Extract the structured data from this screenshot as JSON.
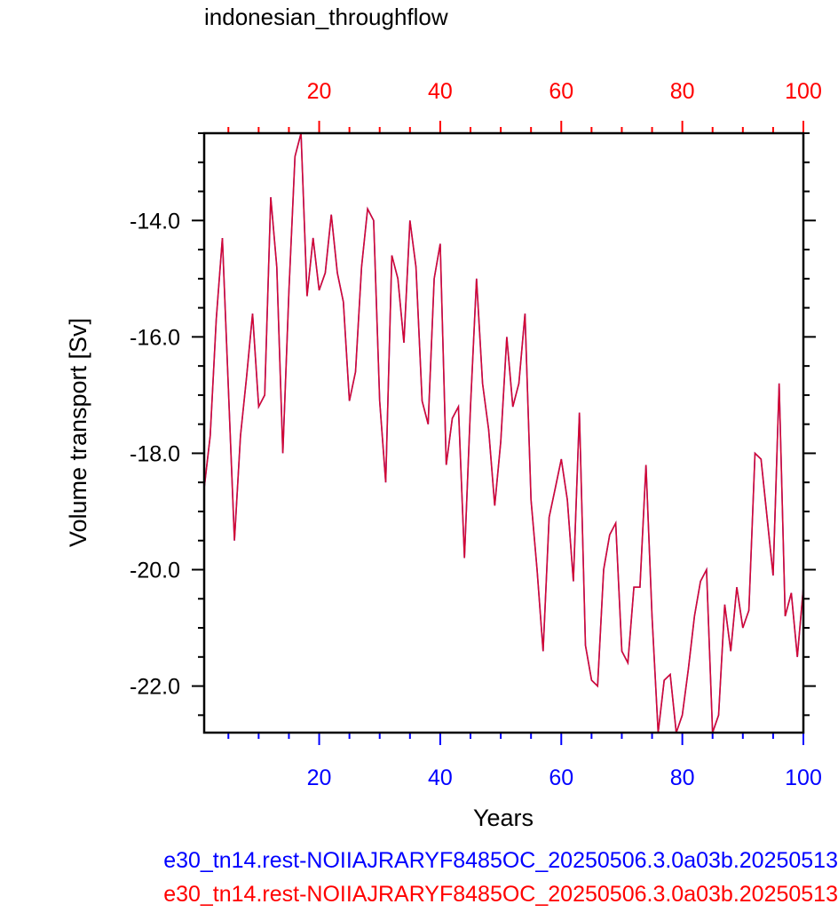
{
  "chart_data": {
    "type": "line",
    "title": "indonesian_throughflow",
    "xlabel": "Years",
    "ylabel": "Volume transport [Sv]",
    "xlim": [
      1,
      100
    ],
    "ylim": [
      -22.8,
      -12.5
    ],
    "x_ticks": [
      20,
      40,
      60,
      80,
      100
    ],
    "y_ticks": [
      -14.0,
      -16.0,
      -18.0,
      -20.0,
      -22.0
    ],
    "y_tick_labels": [
      "-14.0",
      "-16.0",
      "-18.0",
      "-20.0",
      "-22.0"
    ],
    "bottom_axis_color": "#0000ff",
    "top_axis_color": "#ff0000",
    "series": [
      {
        "name": "e30_tn14.rest-NOIIAJRARYF8485OC_20250506.3.0a03b.20250513",
        "color": "#0000ff",
        "x": [
          1,
          2,
          3,
          4,
          5,
          6,
          7,
          8,
          9,
          10,
          11,
          12,
          13,
          14,
          15,
          16,
          17,
          18,
          19,
          20,
          21,
          22,
          23,
          24,
          25,
          26,
          27,
          28,
          29,
          30,
          31,
          32,
          33,
          34,
          35,
          36,
          37,
          38,
          39,
          40,
          41,
          42,
          43,
          44,
          45,
          46,
          47,
          48,
          49,
          50,
          51,
          52,
          53,
          54,
          55,
          56,
          57,
          58,
          59,
          60,
          61,
          62,
          63,
          64,
          65,
          66,
          67,
          68,
          69,
          70,
          71,
          72,
          73,
          74,
          75,
          76,
          77,
          78,
          79,
          80,
          81,
          82,
          83,
          84,
          85,
          86,
          87,
          88,
          89,
          90,
          91,
          92,
          93,
          94,
          95,
          96,
          97,
          98,
          99,
          100
        ],
        "y": [
          -18.6,
          -17.7,
          -15.7,
          -14.3,
          -16.9,
          -19.5,
          -17.7,
          -16.7,
          -15.6,
          -17.2,
          -17.0,
          -13.6,
          -14.8,
          -18.0,
          -15.2,
          -12.9,
          -12.5,
          -15.3,
          -14.3,
          -15.2,
          -14.9,
          -13.9,
          -14.9,
          -15.4,
          -17.1,
          -16.6,
          -14.8,
          -13.8,
          -14.0,
          -17.1,
          -18.5,
          -14.6,
          -15.0,
          -16.1,
          -14.0,
          -14.8,
          -17.1,
          -17.5,
          -15.0,
          -14.4,
          -18.2,
          -17.4,
          -17.2,
          -19.8,
          -17.2,
          -15.0,
          -16.8,
          -17.6,
          -18.9,
          -17.8,
          -16.0,
          -17.2,
          -16.8,
          -15.6,
          -18.8,
          -20.0,
          -21.4,
          -19.1,
          -18.6,
          -18.1,
          -18.8,
          -20.2,
          -17.3,
          -21.3,
          -21.9,
          -22.0,
          -20.0,
          -19.4,
          -19.2,
          -21.4,
          -21.6,
          -20.3,
          -20.3,
          -18.2,
          -20.8,
          -22.8,
          -21.9,
          -21.8,
          -22.8,
          -22.5,
          -21.7,
          -20.8,
          -20.2,
          -20.0,
          -22.8,
          -22.5,
          -20.6,
          -21.4,
          -20.3,
          -21.0,
          -20.7,
          -18.0,
          -18.1,
          -19.1,
          -20.1,
          -16.8,
          -20.8,
          -20.4,
          -21.5,
          -20.3
        ]
      },
      {
        "name": "e30_tn14.rest-NOIIAJRARYF8485OC_20250506.3.0a03b.20250513",
        "color": "#ff0000",
        "x": [
          1,
          2,
          3,
          4,
          5,
          6,
          7,
          8,
          9,
          10,
          11,
          12,
          13,
          14,
          15,
          16,
          17,
          18,
          19,
          20,
          21,
          22,
          23,
          24,
          25,
          26,
          27,
          28,
          29,
          30,
          31,
          32,
          33,
          34,
          35,
          36,
          37,
          38,
          39,
          40,
          41,
          42,
          43,
          44,
          45,
          46,
          47,
          48,
          49,
          50,
          51,
          52,
          53,
          54,
          55,
          56,
          57,
          58,
          59,
          60,
          61,
          62,
          63,
          64,
          65,
          66,
          67,
          68,
          69,
          70,
          71,
          72,
          73,
          74,
          75,
          76,
          77,
          78,
          79,
          80,
          81,
          82,
          83,
          84,
          85,
          86,
          87,
          88,
          89,
          90,
          91,
          92,
          93,
          94,
          95,
          96,
          97,
          98,
          99,
          100
        ],
        "y": [
          -18.6,
          -17.7,
          -15.7,
          -14.3,
          -16.9,
          -19.5,
          -17.7,
          -16.7,
          -15.6,
          -17.2,
          -17.0,
          -13.6,
          -14.8,
          -18.0,
          -15.2,
          -12.9,
          -12.5,
          -15.3,
          -14.3,
          -15.2,
          -14.9,
          -13.9,
          -14.9,
          -15.4,
          -17.1,
          -16.6,
          -14.8,
          -13.8,
          -14.0,
          -17.1,
          -18.5,
          -14.6,
          -15.0,
          -16.1,
          -14.0,
          -14.8,
          -17.1,
          -17.5,
          -15.0,
          -14.4,
          -18.2,
          -17.4,
          -17.2,
          -19.8,
          -17.2,
          -15.0,
          -16.8,
          -17.6,
          -18.9,
          -17.8,
          -16.0,
          -17.2,
          -16.8,
          -15.6,
          -18.8,
          -20.0,
          -21.4,
          -19.1,
          -18.6,
          -18.1,
          -18.8,
          -20.2,
          -17.3,
          -21.3,
          -21.9,
          -22.0,
          -20.0,
          -19.4,
          -19.2,
          -21.4,
          -21.6,
          -20.3,
          -20.3,
          -18.2,
          -20.8,
          -22.8,
          -21.9,
          -21.8,
          -22.8,
          -22.5,
          -21.7,
          -20.8,
          -20.2,
          -20.0,
          -22.8,
          -22.5,
          -20.6,
          -21.4,
          -20.3,
          -21.0,
          -20.7,
          -18.0,
          -18.1,
          -19.1,
          -20.1,
          -16.8,
          -20.8,
          -20.4,
          -21.5,
          -20.3
        ]
      }
    ],
    "legend_placement": "bottom"
  }
}
